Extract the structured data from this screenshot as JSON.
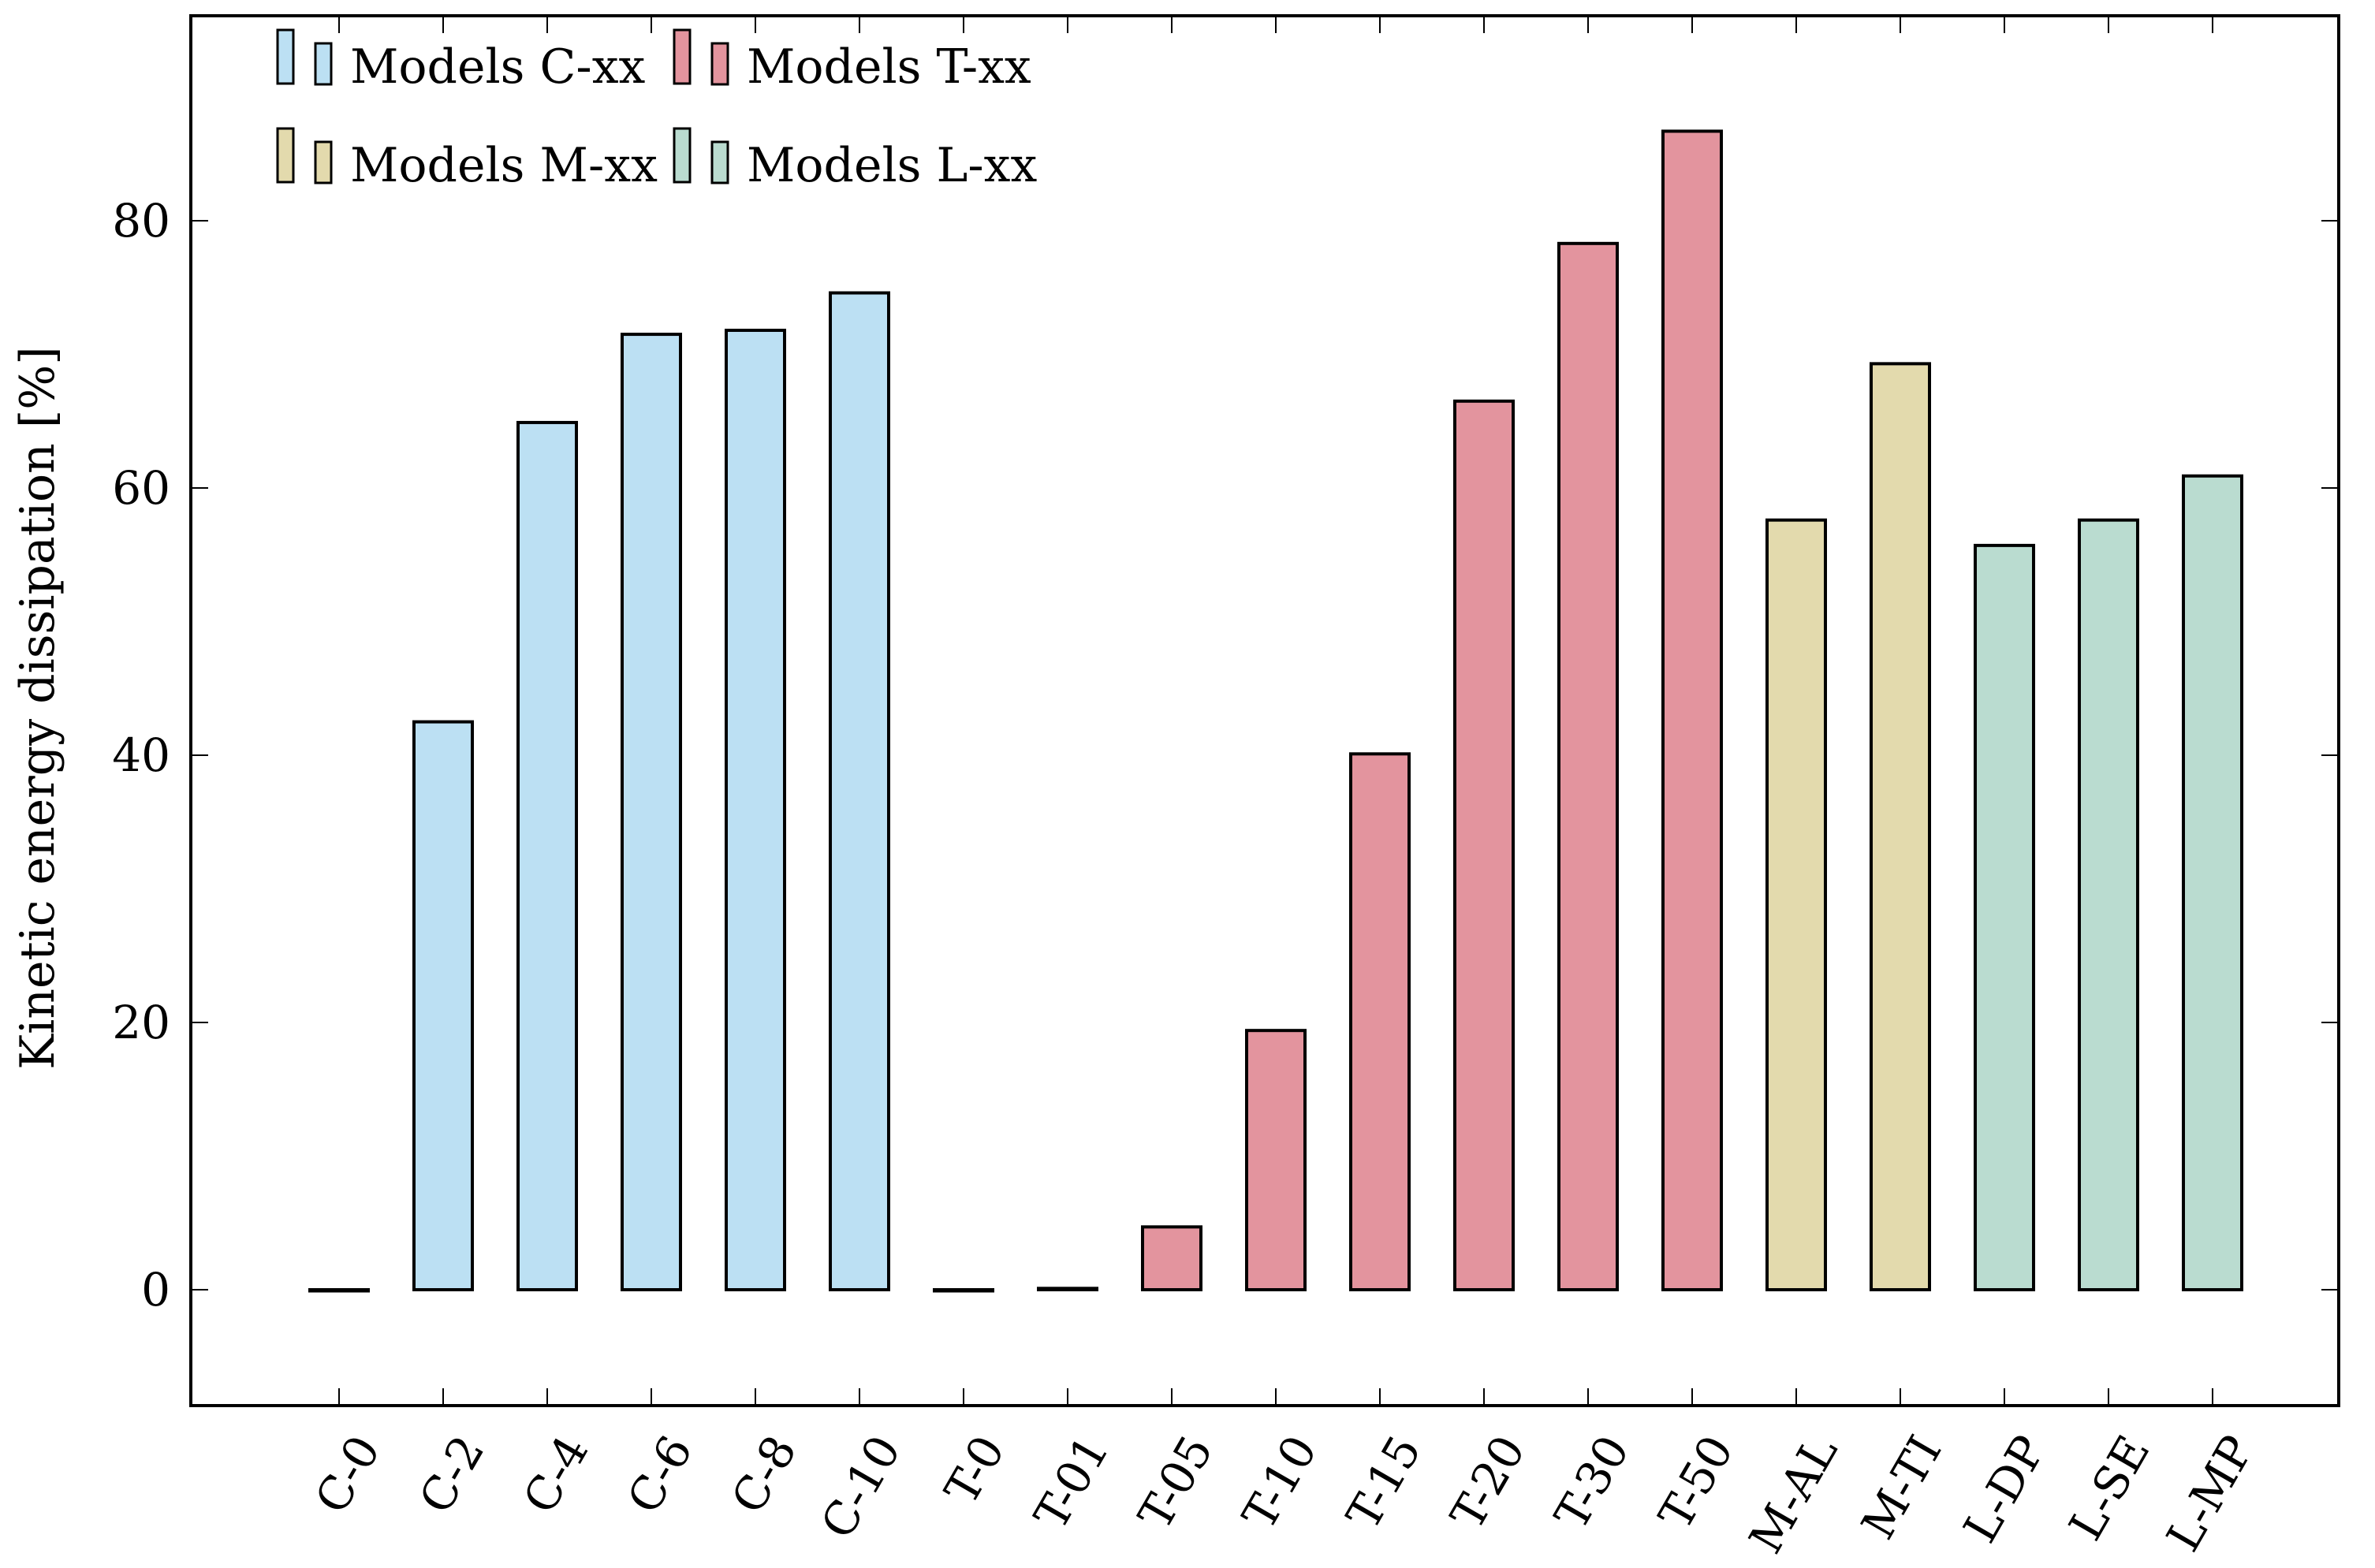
{
  "chart_data": {
    "type": "bar",
    "title": "",
    "xlabel": "",
    "ylabel": "Kinetic energy dissipation [%]",
    "ylim": [
      -8.5,
      95
    ],
    "yticks": [
      0,
      20,
      40,
      60,
      80
    ],
    "grid": false,
    "categories": [
      "C-0",
      "C-2",
      "C-4",
      "C-6",
      "C-8",
      "C-10",
      "T-0",
      "T-01",
      "T-05",
      "T-10",
      "T-15",
      "T-20",
      "T-30",
      "T-50",
      "M-AL",
      "M-TI",
      "L-DP",
      "L-SE",
      "L-MP"
    ],
    "values": [
      0,
      42.5,
      64.9,
      71.5,
      71.8,
      74.6,
      0,
      0.1,
      4.7,
      19.4,
      40.1,
      66.5,
      78.3,
      86.7,
      57.6,
      69.3,
      55.7,
      57.6,
      60.9
    ],
    "groups": [
      "C",
      "C",
      "C",
      "C",
      "C",
      "C",
      "T",
      "T",
      "T",
      "T",
      "T",
      "T",
      "T",
      "T",
      "M",
      "M",
      "L",
      "L",
      "L"
    ],
    "legend": {
      "position": "top-left",
      "entries": [
        {
          "group": "C",
          "label": "Models C-xx"
        },
        {
          "group": "T",
          "label": "Models T-xx"
        },
        {
          "group": "M",
          "label": "Models M-xx"
        },
        {
          "group": "L",
          "label": "Models L-xx"
        }
      ]
    },
    "colors": {
      "C": "#bce0f3",
      "T": "#e3949e",
      "M": "#e3daad",
      "L": "#badcd0",
      "edge": "#000000"
    }
  }
}
